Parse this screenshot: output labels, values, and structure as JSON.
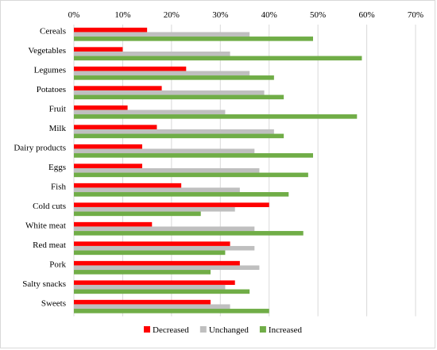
{
  "chart_data": {
    "type": "bar",
    "orientation": "horizontal",
    "title": "",
    "xlabel": "",
    "ylabel": "",
    "xlim": [
      0,
      70
    ],
    "x_ticks": [
      "0%",
      "10%",
      "20%",
      "30%",
      "40%",
      "50%",
      "60%",
      "70%"
    ],
    "x_tick_values": [
      0,
      10,
      20,
      30,
      40,
      50,
      60,
      70
    ],
    "x_axis_position": "top",
    "grid": true,
    "legend_position": "bottom",
    "categories": [
      "Cereals",
      "Vegetables",
      "Legumes",
      "Potatoes",
      "Fruit",
      "Milk",
      "Dairy products",
      "Eggs",
      "Fish",
      "Cold cuts",
      "White meat",
      "Red meat",
      "Pork",
      "Salty snacks",
      "Sweets"
    ],
    "series": [
      {
        "name": "Decreased",
        "color": "#ff0000",
        "values": [
          15,
          10,
          23,
          18,
          11,
          17,
          14,
          14,
          22,
          40,
          16,
          32,
          34,
          33,
          28
        ]
      },
      {
        "name": "Unchanged",
        "color": "#bfbfbf",
        "values": [
          36,
          32,
          36,
          39,
          31,
          41,
          37,
          38,
          34,
          33,
          37,
          37,
          38,
          31,
          32
        ]
      },
      {
        "name": "Increased",
        "color": "#70ad47",
        "values": [
          49,
          59,
          41,
          43,
          58,
          43,
          49,
          48,
          44,
          26,
          47,
          31,
          28,
          36,
          40
        ]
      }
    ]
  }
}
